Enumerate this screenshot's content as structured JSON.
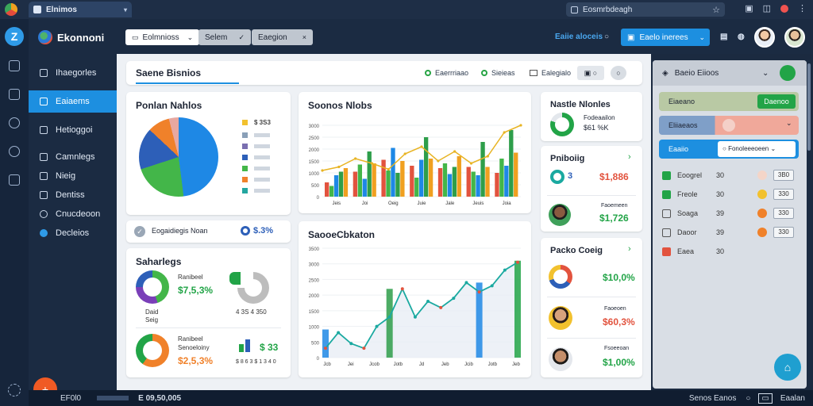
{
  "browser": {
    "tab_title": "Elnimos",
    "url_text": "Eosmrbdeagh"
  },
  "sidebar": {
    "brand": "Ekonnoni",
    "items": [
      {
        "label": "Ihaegorles"
      },
      {
        "label": "Eaiaems"
      },
      {
        "label": "Hetioggoi"
      },
      {
        "label": "Camnlegs"
      },
      {
        "label": "Nieig"
      },
      {
        "label": "Dentiss"
      },
      {
        "label": "Cnucdeoon"
      },
      {
        "label": "Decleios"
      }
    ]
  },
  "toolbar": {
    "button1": "Eolmnioss",
    "button2": "Selem",
    "button3": "Eaegion",
    "link": "Eaiie aloceis",
    "cta": "Eaelo inerees"
  },
  "subbar": {
    "title": "Saene Bisnios",
    "pill1": "Eaerrriaao",
    "pill2": "Sieieas",
    "pill3": "Ealegialo"
  },
  "pie_card": {
    "title": "Ponlan Nahlos",
    "first_label": "$ 3S3"
  },
  "status_strip": {
    "text": "Eogaidiegis Noan",
    "value": "$.3%"
  },
  "small_card": {
    "title": "Saharlegs",
    "row1_label": "Ranibeel",
    "row1_value": "$7,5,3%",
    "row1_sub1": "Daid",
    "row1_sub2": "Seig",
    "row2_label": "Ranibeel",
    "row2_sub": "Senoeloiny",
    "row2_value": "$2,5,3%",
    "right1_caption": "4 3S 4 350",
    "right2_value": "$ 33",
    "right2_caption": "$ 8 6 3 $ 1 3 4 0"
  },
  "bar_chart_card": {
    "title": "Soonos Nlobs"
  },
  "line_chart_card": {
    "title": "SaooeCbkaton"
  },
  "right_cards": {
    "card1_title": "Nastle Nlonles",
    "card1_sub": "Fodeaailon",
    "card1_value": "$61 %K",
    "card2_title": "Pniboiig",
    "card2_items": [
      {
        "value": "$1,886"
      },
      {
        "sub": "Faoemeen",
        "value": "$1,726"
      }
    ],
    "card3_title": "Packo Coeig",
    "card3_items": [
      {
        "value": "$10,0%"
      },
      {
        "sub": "Faoeoen",
        "value": "$60,3%"
      },
      {
        "sub": "Fsoeeoan",
        "value": "$1,00%"
      }
    ]
  },
  "right_panel": {
    "title": "Baeio Eiioos",
    "row1_left": "Eiaeano",
    "row1_btn": "Daenoo",
    "row2_left": "Eliiaeaos",
    "row3_left": "Eaaiio",
    "row3_select": "Fonoleeeoeen",
    "list": [
      {
        "label": "Eoogrel",
        "num": "30",
        "btn": "3B0"
      },
      {
        "label": "Freole",
        "num": "30",
        "btn": "330"
      },
      {
        "label": "Soaga",
        "num": "39",
        "btn": "330"
      },
      {
        "label": "Daoor",
        "num": "39",
        "btn": "330"
      },
      {
        "label": "Eaea",
        "num": "30",
        "btn": ""
      }
    ]
  },
  "statusbar": {
    "left": "EF0l0",
    "mid": "E 09,50,005",
    "right": "Senos Eanos",
    "right2": "Eaalan"
  },
  "chart_data": [
    {
      "type": "pie",
      "categories": [
        "Blue",
        "Green",
        "Navy",
        "Orange",
        "Pink"
      ],
      "values": [
        48,
        22,
        17,
        9,
        4
      ],
      "colors": [
        "#1e88e5",
        "#43b649",
        "#2d5fb8",
        "#f0812a",
        "#e8a8a0"
      ],
      "legend_colors": [
        "#f2c12e",
        "#8aa0b8",
        "#7a6fb0",
        "#2d5fb8",
        "#43b649",
        "#f0812a",
        "#24a6a0"
      ]
    },
    {
      "type": "bar",
      "ylim": [
        0,
        3400
      ],
      "yticks": [
        "0",
        "500",
        "1000",
        "1500",
        "2000",
        "2500",
        "3000"
      ],
      "xticks": [
        "Jeis",
        "Joi",
        "Oeig",
        "Juie",
        "Jale",
        "Jeuis",
        "Joia"
      ],
      "series": [
        {
          "values": [
            600,
            1050,
            1550,
            1300,
            1200,
            1250,
            1000
          ],
          "color": "#e2533e"
        },
        {
          "values": [
            450,
            1350,
            1100,
            800,
            1400,
            1050,
            1600
          ],
          "color": "#43b649"
        },
        {
          "values": [
            900,
            750,
            2050,
            1550,
            950,
            900,
            1300
          ],
          "color": "#1e88e5"
        },
        {
          "values": [
            1050,
            1900,
            1000,
            2500,
            1250,
            2300,
            2800
          ],
          "color": "#2e9e4a"
        },
        {
          "values": [
            1200,
            1400,
            1500,
            1600,
            1700,
            1250,
            1850
          ],
          "color": "#f0a020"
        }
      ],
      "line": [
        1100,
        1250,
        1600,
        1400,
        1150,
        1800,
        2100,
        1500,
        1900,
        1400,
        1700,
        2700,
        3000
      ],
      "line_color": "#e8b423"
    },
    {
      "type": "line",
      "ylim": [
        0,
        3500
      ],
      "yticks": [
        "0",
        "500",
        "1000",
        "1500",
        "2000",
        "2500",
        "3000",
        "3500"
      ],
      "xticks": [
        "Jcb",
        "Jei",
        "Jcob",
        "Jotb",
        "Jd",
        "Jeb",
        "Jcib",
        "Jotb",
        "Jeb"
      ],
      "values": [
        300,
        800,
        450,
        300,
        1000,
        1300,
        2200,
        1300,
        1800,
        1600,
        1900,
        2400,
        2100,
        2300,
        2800,
        3050
      ],
      "bars": [
        {
          "x": 0,
          "value": 900,
          "color": "#1e88e5"
        },
        {
          "x": 5,
          "value": 2200,
          "color": "#2e9e4a"
        },
        {
          "x": 12,
          "value": 2400,
          "color": "#1e88e5"
        },
        {
          "x": 15,
          "value": 3100,
          "color": "#22a447"
        }
      ],
      "line_color": "#1aa9a0"
    }
  ]
}
